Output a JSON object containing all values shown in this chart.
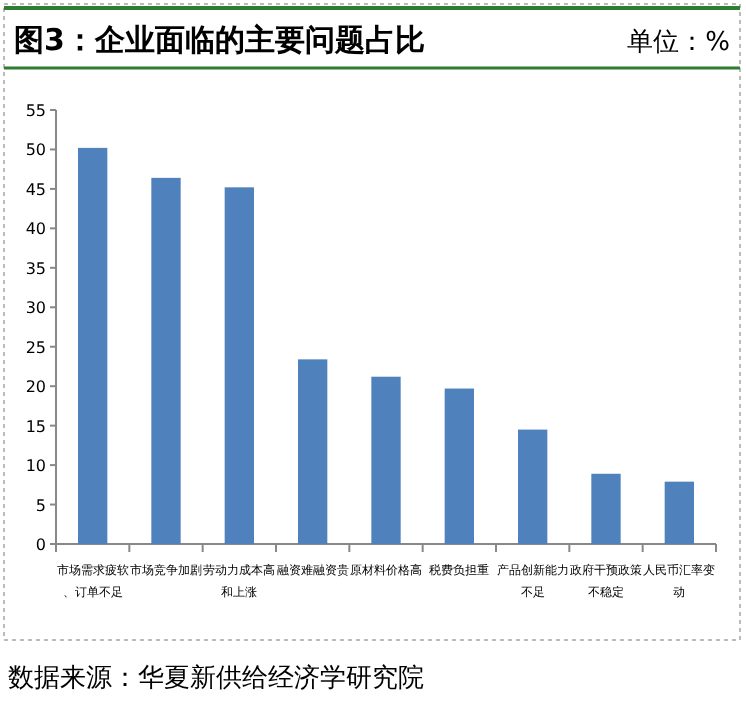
{
  "chart_data": {
    "type": "bar",
    "title": "图3：企业面临的主要问题占比",
    "annotations": [
      "单位：%",
      "数据来源：华夏新供给经济学研究院"
    ],
    "categories": [
      "市场需求疲软、订单不足",
      "市场竞争加剧",
      "劳动力成本高和上涨",
      "融资难融资贵",
      "原材料价格高",
      "税费负担重",
      "产品创新能力不足",
      "政府干预政策不稳定",
      "人民币汇率变动"
    ],
    "values": [
      50.2,
      46.4,
      45.2,
      23.4,
      21.2,
      19.7,
      14.5,
      8.9,
      7.9
    ],
    "color": "#4f81bd",
    "ylim": [
      0,
      55
    ],
    "yticks": [
      0,
      5,
      10,
      15,
      20,
      25,
      30,
      35,
      40,
      45,
      50,
      55
    ],
    "grid": false
  }
}
